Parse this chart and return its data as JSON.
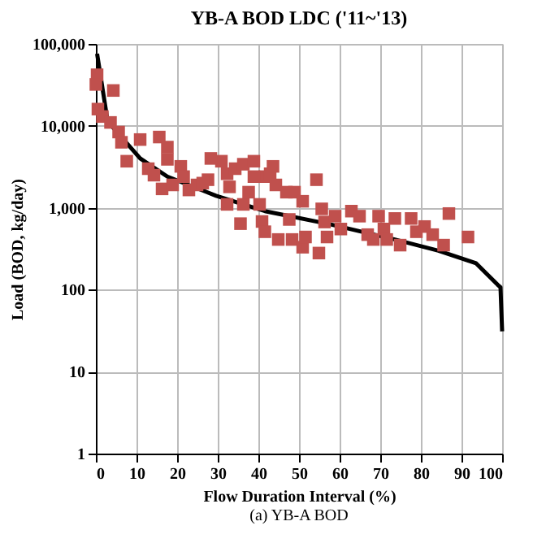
{
  "chart_data": {
    "type": "scatter",
    "title": "YB-A  BOD  LDC ('11~'13)",
    "xlabel": "Flow Duration Interval (%)",
    "ylabel": "Load (BOD, kg/day)",
    "annotations": [
      "(a)  YB-A  BOD"
    ],
    "log": "y",
    "grid": true,
    "legend": false,
    "xlim": [
      0,
      100
    ],
    "xticks": [
      0,
      10,
      20,
      30,
      40,
      50,
      60,
      70,
      80,
      90,
      100
    ],
    "ylim": [
      1,
      100000
    ],
    "yticks": [
      {
        "value": 1,
        "label": "1"
      },
      {
        "value": 10,
        "label": "10"
      },
      {
        "value": 100,
        "label": "100"
      },
      {
        "value": 1000,
        "label": "1,000"
      },
      {
        "value": 10000,
        "label": "10,000"
      },
      {
        "value": 100000,
        "label": "100,000"
      }
    ],
    "series": [
      {
        "type": "line",
        "color": "#000000",
        "marker": "none",
        "line_style": "solid",
        "x": [
          0.3,
          2.9,
          10.9,
          17.6,
          29.6,
          41.6,
          57.6,
          73.6,
          84.3,
          93.6,
          98.9,
          99.6,
          100
        ],
        "values": [
          76000,
          11300,
          4000,
          2400,
          1400,
          910,
          630,
          410,
          300,
          210,
          115,
          107,
          31
        ]
      },
      {
        "type": "scatter",
        "color": "#c0504d",
        "marker": "square",
        "x": [
          0.3,
          0,
          4.3,
          0.5,
          1.6,
          3.6,
          5.6,
          6.3,
          10.9,
          15.6,
          17.6,
          17.6,
          7.6,
          12.9,
          14.3,
          16.3,
          18.9,
          20.9,
          21.6,
          22.9,
          24.9,
          27.6,
          30.9,
          32.3,
          32.9,
          34.3,
          36.3,
          38.9,
          32.3,
          36.3,
          35.6,
          37.6,
          40.3,
          41.6,
          43.6,
          44.3,
          46.9,
          48.9,
          50.9,
          54.3,
          40.9,
          41.6,
          44.9,
          47.6,
          48.3,
          50.9,
          51.6,
          54.9,
          55.6,
          56.3,
          56.9,
          58.9,
          60.3,
          62.9,
          64.9,
          66.9,
          68.3,
          69.6,
          70.9,
          71.6,
          73.6,
          74.9,
          77.6,
          78.9,
          80.9,
          82.9,
          85.6,
          86.9,
          91.6,
          28.3,
          26.3,
          38.9,
          42.9
        ],
        "values": [
          42000,
          32000,
          27000,
          16000,
          13000,
          11000,
          8400,
          6300,
          6800,
          7300,
          5500,
          3900,
          3700,
          3000,
          2500,
          1700,
          1900,
          3200,
          2400,
          1650,
          1900,
          2200,
          3700,
          2600,
          1800,
          3000,
          3400,
          3700,
          1100,
          1100,
          640,
          1550,
          1100,
          2400,
          3200,
          1900,
          1550,
          1550,
          1200,
          2200,
          680,
          510,
          410,
          720,
          410,
          330,
          440,
          280,
          970,
          670,
          440,
          790,
          550,
          910,
          790,
          470,
          410,
          790,
          550,
          410,
          740,
          350,
          740,
          510,
          590,
          470,
          350,
          850,
          440,
          4000,
          2000,
          2400,
          2600
        ]
      }
    ]
  }
}
